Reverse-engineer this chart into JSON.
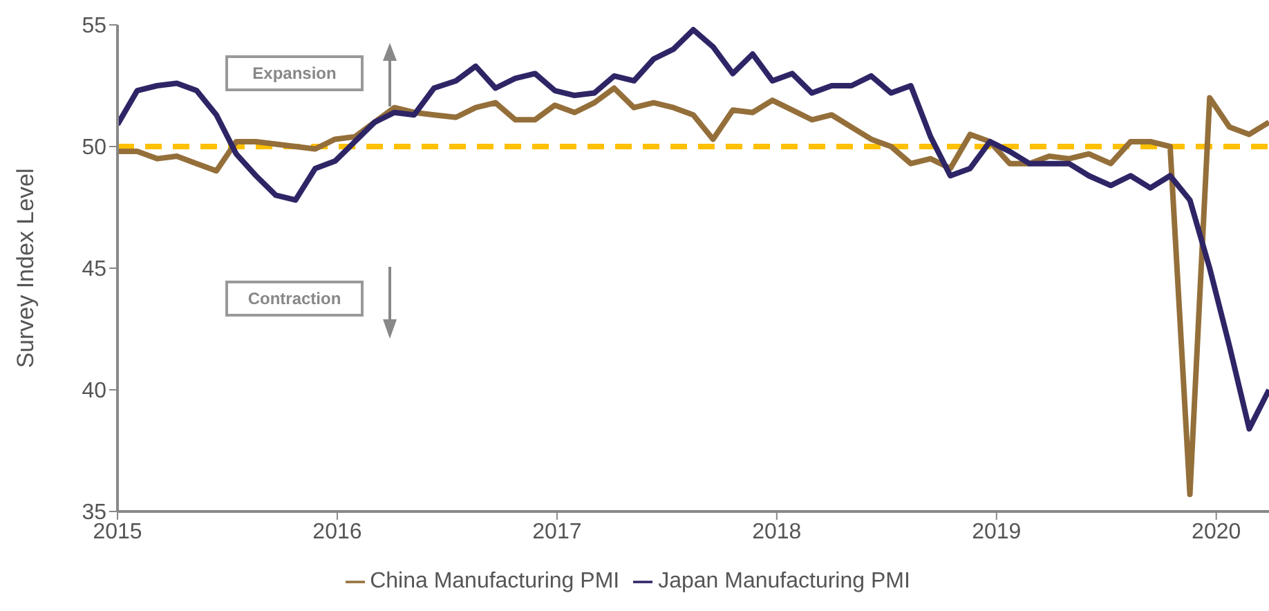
{
  "chart_data": {
    "type": "line",
    "ylabel": "Survey Index Level",
    "x": [
      2015,
      2015.09,
      2015.18,
      2015.27,
      2015.36,
      2015.45,
      2015.54,
      2015.63,
      2015.72,
      2015.81,
      2015.9,
      2015.99,
      2016.08,
      2016.17,
      2016.26,
      2016.35,
      2016.44,
      2016.54,
      2016.63,
      2016.72,
      2016.81,
      2016.9,
      2016.99,
      2017.08,
      2017.17,
      2017.26,
      2017.35,
      2017.44,
      2017.53,
      2017.62,
      2017.71,
      2017.8,
      2017.89,
      2017.98,
      2018.07,
      2018.16,
      2018.25,
      2018.34,
      2018.43,
      2018.52,
      2018.61,
      2018.7,
      2018.79,
      2018.88,
      2018.97,
      2019.06,
      2019.15,
      2019.24,
      2019.33,
      2019.42,
      2019.52,
      2019.61,
      2019.7,
      2019.79,
      2019.88,
      2019.97,
      2020.06,
      2020.15,
      2020.24
    ],
    "series": [
      {
        "name": "China Manufacturing PMI",
        "color": "#946f3a",
        "values": [
          49.8,
          49.8,
          49.5,
          49.6,
          49.3,
          49.0,
          50.2,
          50.2,
          50.1,
          50.0,
          49.9,
          50.3,
          50.4,
          51.0,
          51.6,
          51.4,
          51.3,
          51.2,
          51.6,
          51.8,
          51.1,
          51.1,
          51.7,
          51.4,
          51.8,
          52.4,
          51.6,
          51.8,
          51.6,
          51.3,
          50.3,
          51.5,
          51.4,
          51.9,
          51.5,
          51.1,
          51.3,
          50.8,
          50.3,
          50.0,
          49.3,
          49.5,
          49.1,
          50.5,
          50.2,
          49.3,
          49.3,
          49.6,
          49.5,
          49.7,
          49.3,
          50.2,
          50.2,
          50.0,
          35.7,
          52.0,
          50.8,
          50.5,
          51.0
        ]
      },
      {
        "name": "Japan Manufacturing PMI",
        "color": "#2e2566",
        "values": [
          50.9,
          52.3,
          52.5,
          52.6,
          52.3,
          51.3,
          49.7,
          48.8,
          48.0,
          47.8,
          49.1,
          49.4,
          50.2,
          51.0,
          51.4,
          51.3,
          52.4,
          52.7,
          53.3,
          52.4,
          52.8,
          53.0,
          52.3,
          52.1,
          52.2,
          52.9,
          52.7,
          53.6,
          54.0,
          54.8,
          54.1,
          53.0,
          53.8,
          52.7,
          53.0,
          52.2,
          52.5,
          52.5,
          52.9,
          52.2,
          52.5,
          50.4,
          48.8,
          49.1,
          50.2,
          49.8,
          49.3,
          49.3,
          49.3,
          48.8,
          48.4,
          48.8,
          48.3,
          48.8,
          47.8,
          45.0,
          41.8,
          38.4,
          40.0
        ]
      }
    ],
    "xlim": [
      2015,
      2020.24
    ],
    "xticks": [
      2015,
      2016,
      2017,
      2018,
      2019,
      2020
    ],
    "ylim": [
      35,
      55
    ],
    "yticks": [
      35,
      40,
      45,
      50,
      55
    ],
    "ref_lines": [
      {
        "axis": "y",
        "value": 50,
        "color": "#ffc000",
        "line_style": "dashed"
      }
    ],
    "annotations": [
      "Expansion",
      "Contraction"
    ],
    "legend": "bottom",
    "marker": "none",
    "line_style": "solid"
  }
}
